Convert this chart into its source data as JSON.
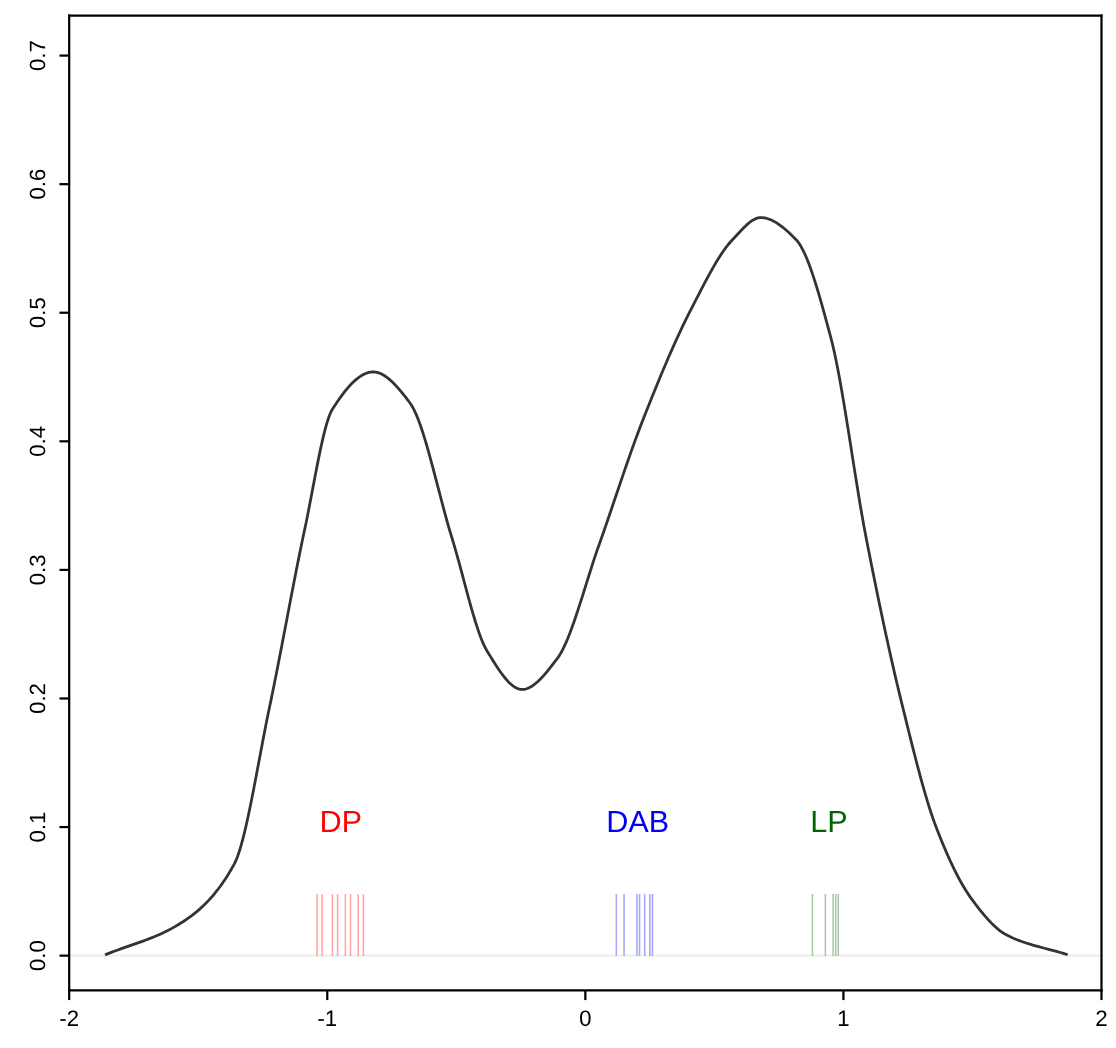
{
  "chart_data": {
    "type": "line",
    "xlim": [
      -2.0,
      2.0
    ],
    "ylim": [
      -0.027,
      0.731
    ],
    "xticks": [
      -2,
      -1,
      0,
      1,
      2
    ],
    "yticks": [
      {
        "value": 0,
        "label": "0.0"
      },
      0.1,
      0.2,
      0.3,
      0.4,
      0.5,
      0.6,
      0.7
    ],
    "grid": false,
    "legend": false,
    "ref_lines": [
      {
        "axis": "y",
        "value": 0,
        "color": "#eeeeee"
      }
    ],
    "series": [
      {
        "color": "#333333",
        "x": [
          -1.856,
          -1.578,
          -1.361,
          -1.224,
          -1.088,
          -0.98,
          -0.822,
          -0.68,
          -0.517,
          -0.381,
          -0.245,
          -0.109,
          0.054,
          0.218,
          0.408,
          0.571,
          0.68,
          0.816,
          0.952,
          1.088,
          1.224,
          1.361,
          1.497,
          1.633,
          1.864
        ],
        "values": [
          0.001,
          0.024,
          0.071,
          0.193,
          0.331,
          0.425,
          0.454,
          0.43,
          0.325,
          0.237,
          0.207,
          0.231,
          0.32,
          0.414,
          0.502,
          0.557,
          0.574,
          0.557,
          0.48,
          0.325,
          0.198,
          0.099,
          0.044,
          0.016,
          0.001
        ]
      },
      {
        "type": "bar",
        "name": "DP",
        "color": "#ff0000",
        "x": [
          -1.04,
          -1.02,
          -0.98,
          -0.96,
          -0.93,
          -0.91,
          -0.88,
          -0.86
        ],
        "values": [
          0.048,
          0.048,
          0.048,
          0.048,
          0.048,
          0.048,
          0.048,
          0.048
        ]
      },
      {
        "type": "bar",
        "name": "DAB",
        "color": "#0000ff",
        "x": [
          0.12,
          0.15,
          0.2,
          0.21,
          0.23,
          0.25,
          0.26
        ],
        "values": [
          0.048,
          0.048,
          0.048,
          0.048,
          0.048,
          0.048,
          0.048
        ]
      },
      {
        "type": "bar",
        "name": "LP",
        "color": "#006400",
        "x": [
          0.88,
          0.93,
          0.96,
          0.97,
          0.98
        ],
        "values": [
          0.048,
          0.048,
          0.048,
          0.048,
          0.048
        ]
      }
    ]
  }
}
